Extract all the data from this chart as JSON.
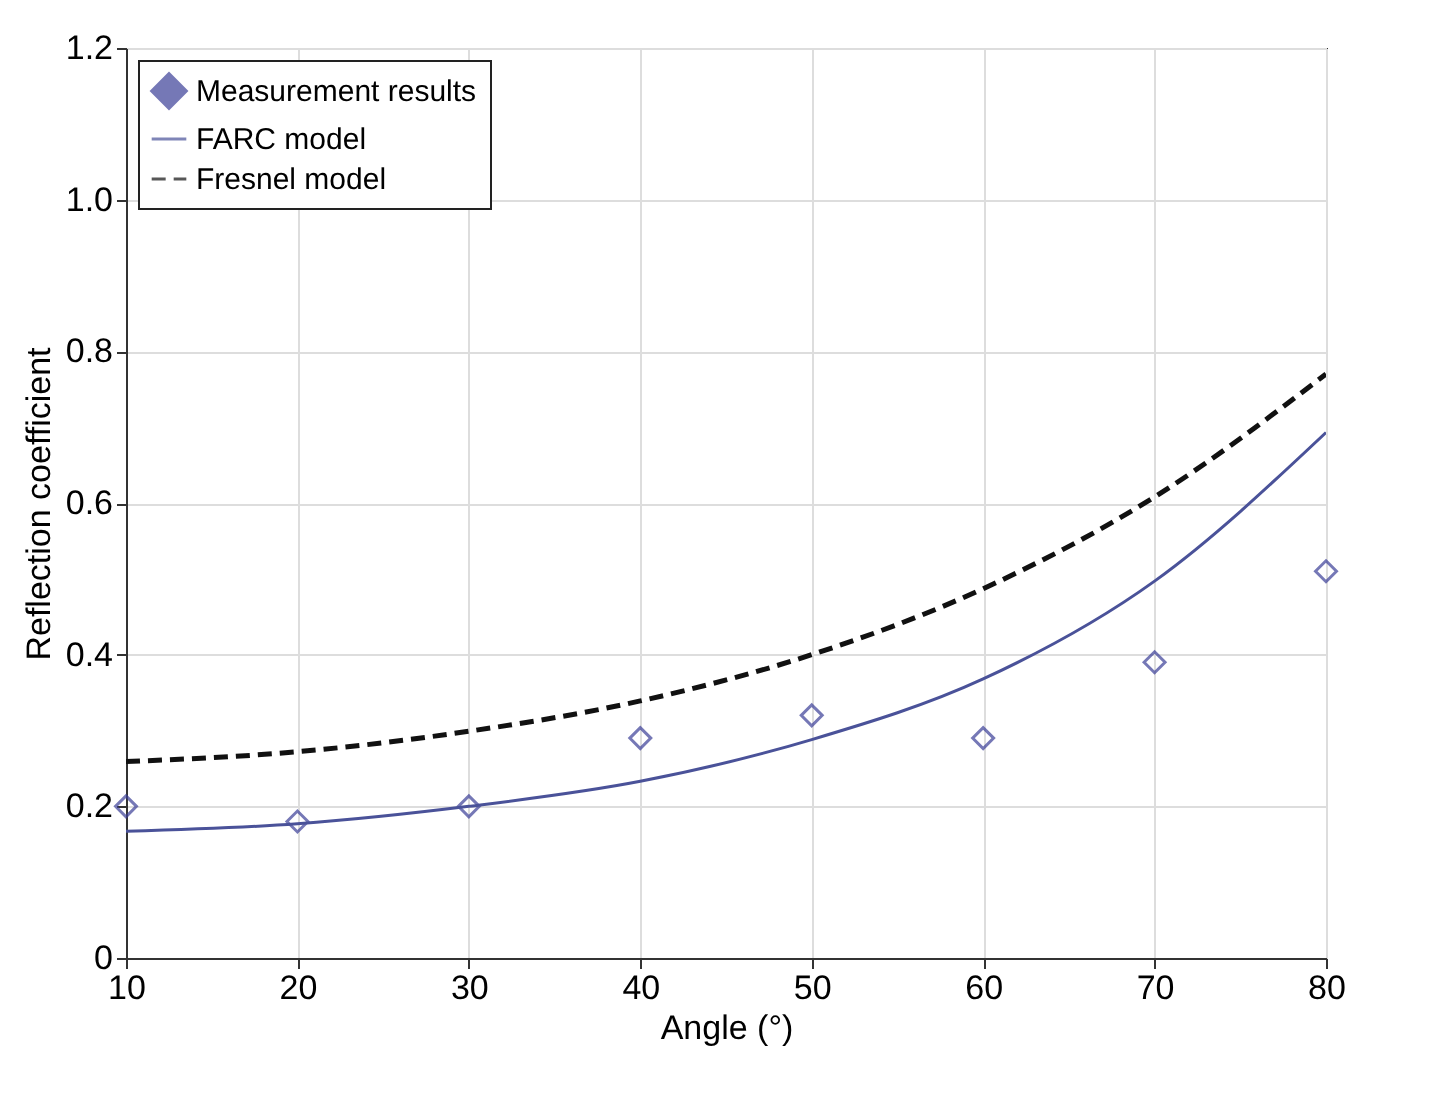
{
  "chart_data": {
    "type": "line",
    "xlabel": "Angle (°)",
    "ylabel": "Reflection coefficient",
    "xlim": [
      10,
      80
    ],
    "ylim": [
      0,
      1.2
    ],
    "xticks": [
      10,
      20,
      30,
      40,
      50,
      60,
      70,
      80
    ],
    "yticks": [
      0,
      0.2,
      0.4,
      0.6,
      0.8,
      {
        "value": 1,
        "label": "1.0"
      },
      1.2
    ],
    "grid": true,
    "legend": "top left",
    "series": [
      {
        "name": "Measurement results",
        "type": "scatter",
        "marker": "diamond",
        "color": "#3c3f98",
        "x": [
          10,
          20,
          30,
          40,
          50,
          60,
          70,
          80
        ],
        "values": [
          0.2,
          0.18,
          0.2,
          0.29,
          0.32,
          0.29,
          0.39,
          0.51
        ]
      },
      {
        "name": "FARC model",
        "line_style": "solid",
        "color": "#4a5299",
        "x": [
          10,
          20,
          30,
          40,
          50,
          60,
          70,
          80
        ],
        "values": [
          0.167,
          0.177,
          0.2,
          0.233,
          0.288,
          0.368,
          0.497,
          0.693
        ]
      },
      {
        "name": "Fresnel model",
        "line_style": "dashed",
        "color": "#111111",
        "x": [
          10,
          20,
          30,
          40,
          50,
          60,
          70,
          80
        ],
        "values": [
          0.259,
          0.272,
          0.299,
          0.339,
          0.4,
          0.487,
          0.608,
          0.77
        ]
      }
    ]
  }
}
